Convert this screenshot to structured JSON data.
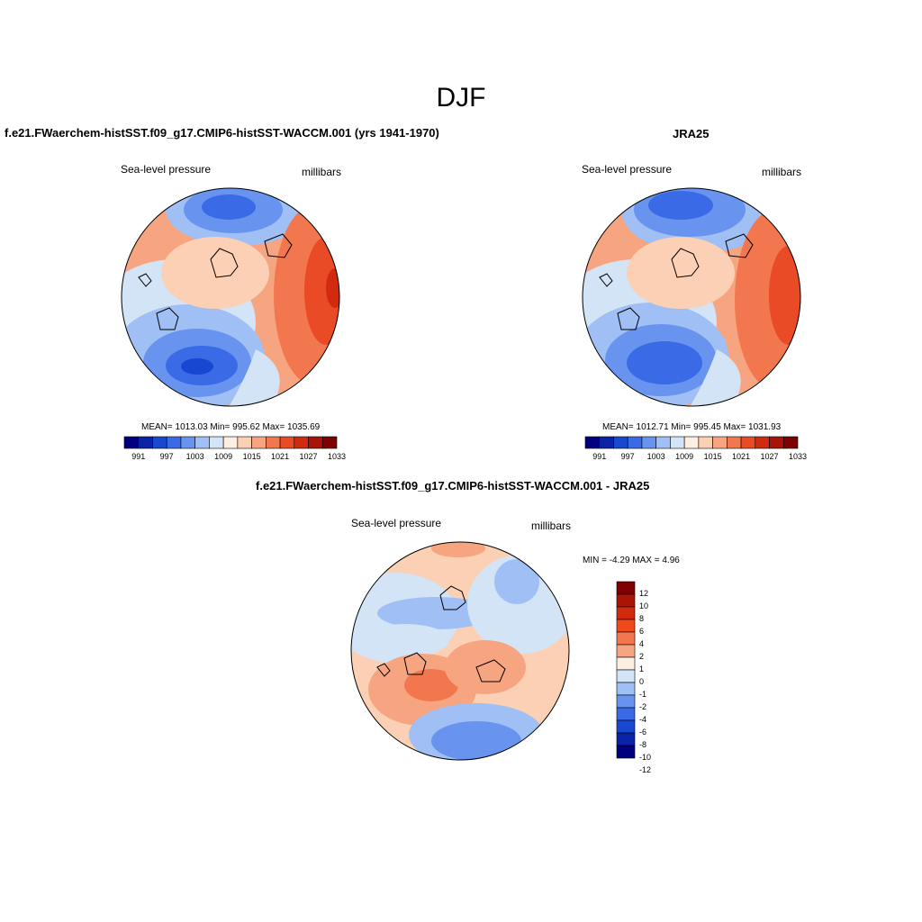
{
  "page": {
    "title": "DJF"
  },
  "panels": [
    {
      "title": "f.e21.FWaerchem-histSST.f09_g17.CMIP6-histSST-WACCM.001 (yrs 1941-1970)",
      "variable": "Sea-level pressure",
      "units": "millibars",
      "stats": "MEAN= 1013.03  Min= 995.62  Max= 1035.69",
      "colorbar_ticks": [
        "991",
        "997",
        "1003",
        "1009",
        "1015",
        "1021",
        "1027",
        "1033"
      ]
    },
    {
      "title": "JRA25",
      "variable": "Sea-level pressure",
      "units": "millibars",
      "stats": "MEAN= 1012.71  Min= 995.45  Max= 1031.93",
      "colorbar_ticks": [
        "991",
        "997",
        "1003",
        "1009",
        "1015",
        "1021",
        "1027",
        "1033"
      ]
    },
    {
      "title": "f.e21.FWaerchem-histSST.f09_g17.CMIP6-histSST-WACCM.001 - JRA25",
      "variable": "Sea-level pressure",
      "units": "millibars",
      "stats": "MIN =  -4.29 MAX =   4.96",
      "colorbar_ticks": [
        "12",
        "10",
        "8",
        "6",
        "4",
        "2",
        "1",
        "0",
        "-1",
        "-2",
        "-4",
        "-6",
        "-8",
        "-10",
        "-12"
      ]
    }
  ],
  "palettes": {
    "absolute": [
      "#00007f",
      "#0a22a6",
      "#1847d1",
      "#3a6ae6",
      "#6894f0",
      "#a0bff5",
      "#d3e4f7",
      "#fdeee2",
      "#fbd0b4",
      "#f7a580",
      "#f2774e",
      "#e84b25",
      "#d12a0e",
      "#a81506",
      "#7f0000"
    ],
    "difference": [
      "#7f0000",
      "#a81506",
      "#d12a0e",
      "#f04a1c",
      "#f2774e",
      "#f7a580",
      "#fdeee2",
      "#d3e4f7",
      "#a0bff5",
      "#6894f0",
      "#3a6ae6",
      "#1847d1",
      "#0a22a6",
      "#00007f"
    ]
  }
}
